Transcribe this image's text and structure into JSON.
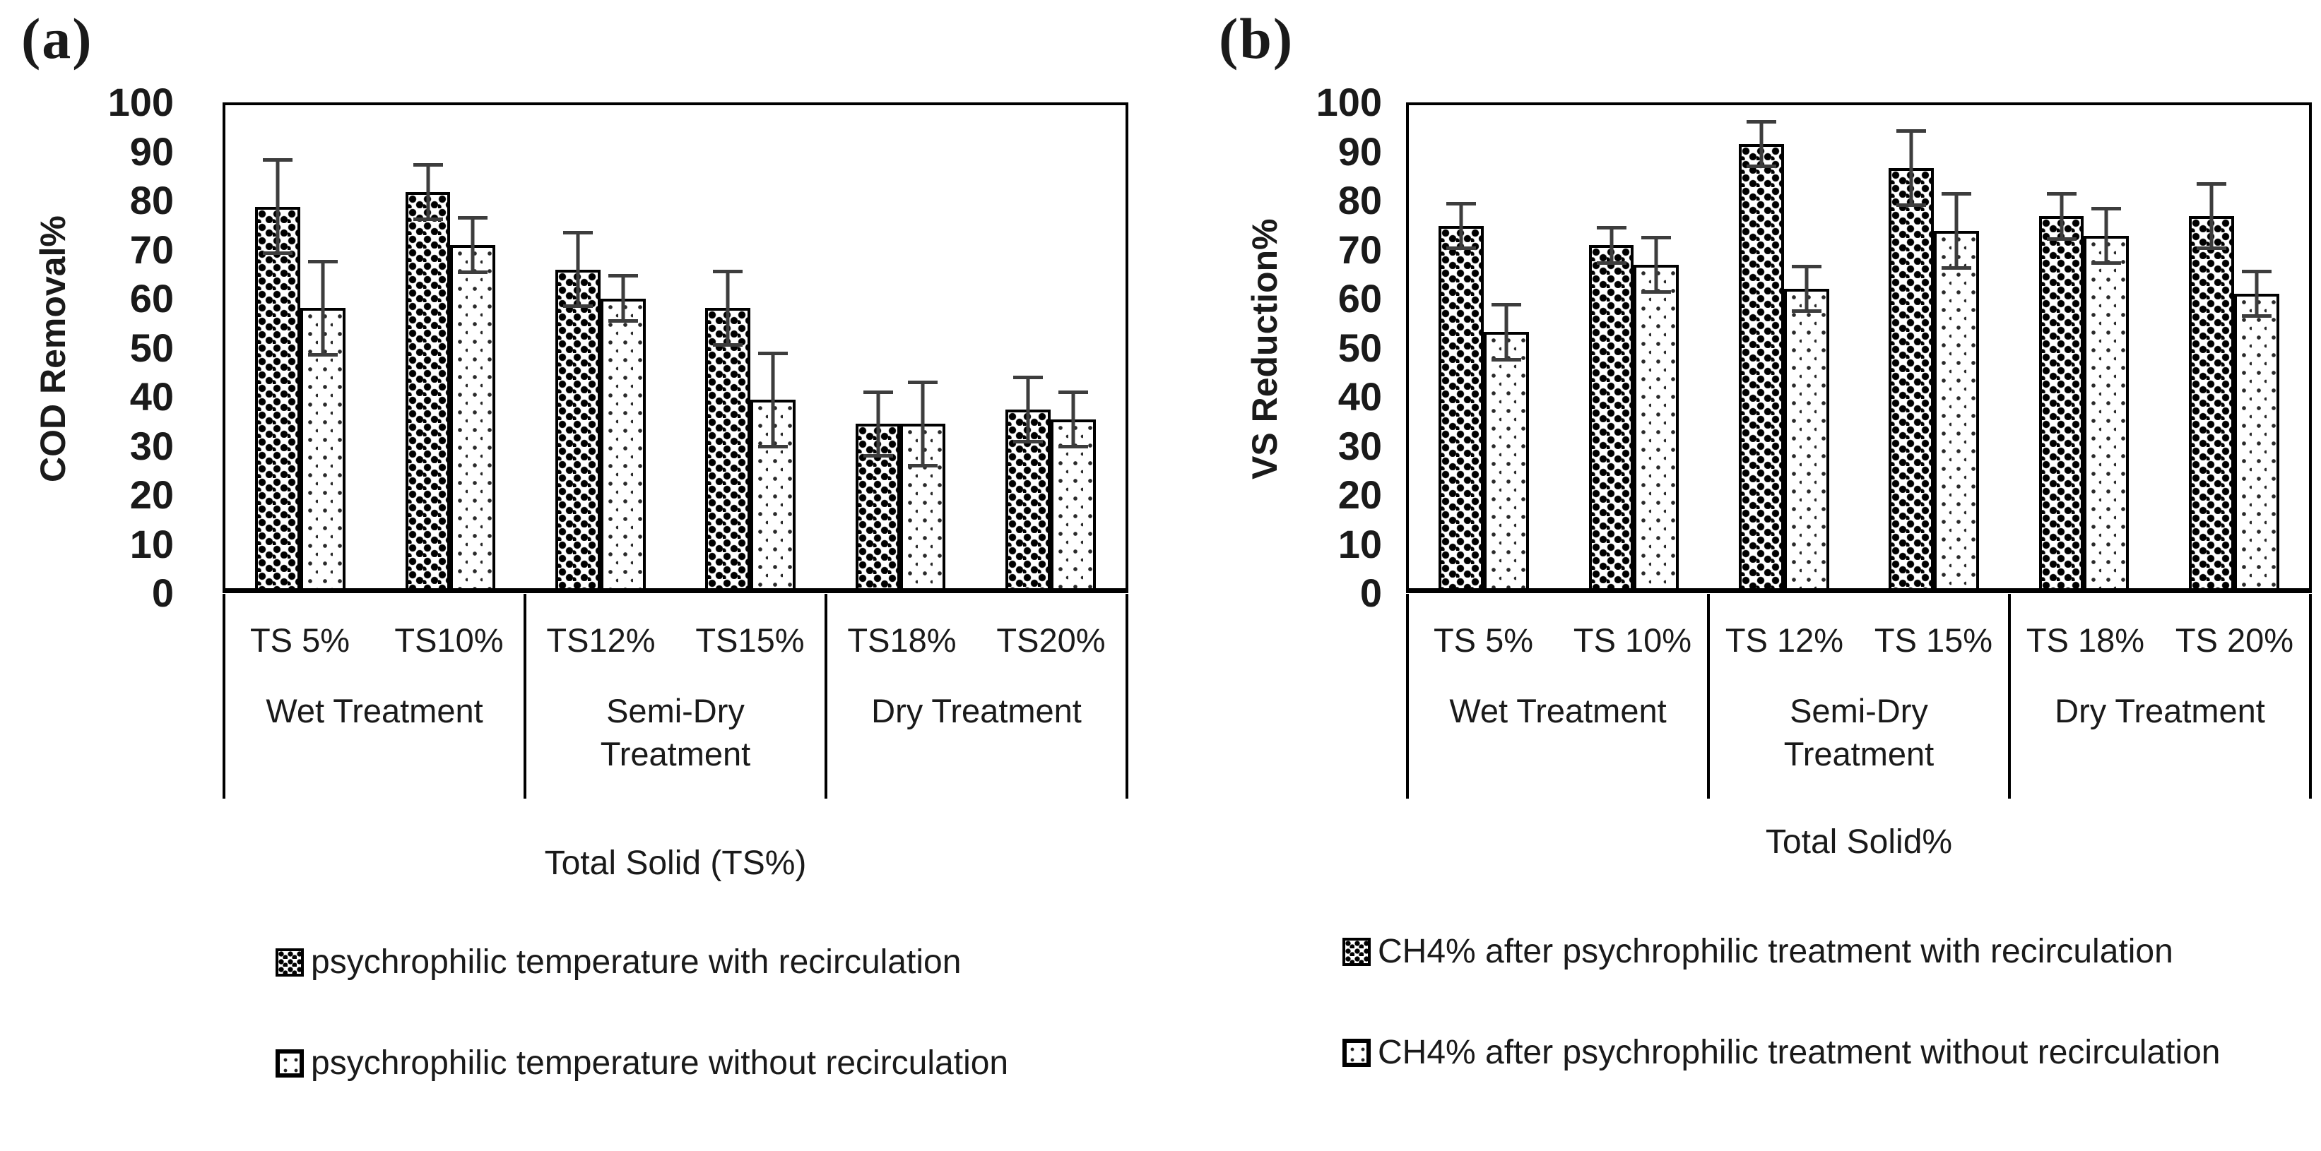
{
  "chart_data": [
    {
      "type": "bar",
      "panel": "(a)",
      "ylabel": "COD Removal%",
      "xlabel": "Total Solid (TS%)",
      "ylim": [
        0,
        100
      ],
      "ytick_step": 10,
      "yticks": [
        100,
        90,
        80,
        70,
        60,
        50,
        40,
        30,
        20,
        10,
        0
      ],
      "grid": false,
      "legend_position": "below",
      "categories": [
        "TS 5%",
        "TS10%",
        "TS12%",
        "TS15%",
        "TS18%",
        "TS20%"
      ],
      "groups": [
        {
          "label": "Wet Treatment",
          "categories": [
            0,
            1
          ]
        },
        {
          "label": "Semi-Dry Treatment",
          "categories": [
            2,
            3
          ]
        },
        {
          "label": "Dry Treatment",
          "categories": [
            4,
            5
          ]
        }
      ],
      "series": [
        {
          "name": "psychrophilic temperature with recirculation",
          "pattern": "dense",
          "values": [
            79,
            82,
            66,
            58,
            34,
            37
          ],
          "errors": [
            10,
            6,
            8,
            8,
            7,
            7
          ]
        },
        {
          "name": "psychrophilic temperature without recirculation",
          "pattern": "light",
          "values": [
            58,
            71,
            60,
            39,
            34,
            35
          ],
          "errors": [
            10,
            6,
            5,
            10,
            9,
            6
          ]
        }
      ]
    },
    {
      "type": "bar",
      "panel": "(b)",
      "ylabel": "VS Reduction%",
      "xlabel": "Total Solid%",
      "ylim": [
        0,
        100
      ],
      "ytick_step": 10,
      "yticks": [
        100,
        90,
        80,
        70,
        60,
        50,
        40,
        30,
        20,
        10,
        0
      ],
      "grid": false,
      "legend_position": "below",
      "categories": [
        "TS 5%",
        "TS 10%",
        "TS 12%",
        "TS 15%",
        "TS 18%",
        "TS 20%"
      ],
      "groups": [
        {
          "label": "Wet Treatment",
          "categories": [
            0,
            1
          ]
        },
        {
          "label": "Semi-Dry Treatment",
          "categories": [
            2,
            3
          ]
        },
        {
          "label": "Dry Treatment",
          "categories": [
            4,
            5
          ]
        }
      ],
      "series": [
        {
          "name": "CH4% after psychrophilic treatment with recirculation",
          "pattern": "dense",
          "values": [
            75,
            71,
            92,
            87,
            77,
            77
          ],
          "errors": [
            5,
            4,
            5,
            8,
            5,
            7
          ]
        },
        {
          "name": "CH4% after psychrophilic treatment without recirculation",
          "pattern": "light",
          "values": [
            53,
            67,
            62,
            74,
            73,
            61
          ],
          "errors": [
            6,
            6,
            5,
            8,
            6,
            5
          ]
        }
      ]
    }
  ]
}
